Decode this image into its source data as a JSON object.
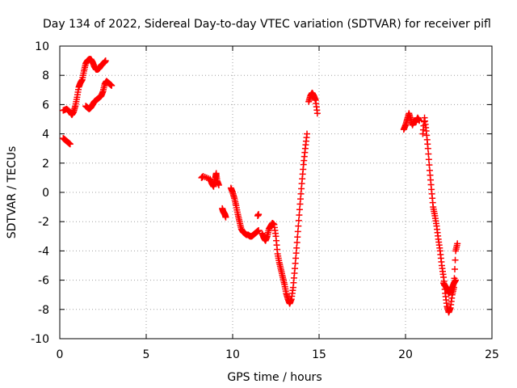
{
  "chart_data": {
    "type": "scatter",
    "title": "Day 134 of 2022, Sidereal Day-to-day VTEC variation (SDTVAR) for receiver pifl",
    "xlabel": "GPS time / hours",
    "ylabel": "SDTVAR / TECUs",
    "xlim": [
      0,
      25
    ],
    "ylim": [
      -10,
      10
    ],
    "xticks": [
      0,
      5,
      10,
      15,
      20,
      25
    ],
    "yticks": [
      -10,
      -8,
      -6,
      -4,
      -2,
      0,
      2,
      4,
      6,
      8,
      10
    ],
    "xtick_labels": [
      "0",
      "5",
      "10",
      "15",
      "20",
      "25"
    ],
    "ytick_labels": [
      "-10",
      "-8",
      "-6",
      "-4",
      "-2",
      "0",
      "2",
      "4",
      "6",
      "8",
      "10"
    ],
    "grid": true,
    "marker": "+",
    "color": "#ff0000",
    "series": [
      {
        "name": "SDTVAR",
        "segments": [
          [
            [
              0.2,
              3.7
            ],
            [
              0.3,
              3.6
            ],
            [
              0.4,
              3.5
            ],
            [
              0.5,
              3.4
            ],
            [
              0.6,
              3.3
            ]
          ],
          [
            [
              0.2,
              5.6
            ],
            [
              0.4,
              5.7
            ],
            [
              0.6,
              5.5
            ],
            [
              0.7,
              5.3
            ],
            [
              0.8,
              5.5
            ],
            [
              0.9,
              5.9
            ],
            [
              1.0,
              6.5
            ],
            [
              1.1,
              7.2
            ],
            [
              1.2,
              7.5
            ],
            [
              1.3,
              7.7
            ],
            [
              1.4,
              8.3
            ],
            [
              1.5,
              8.8
            ],
            [
              1.6,
              9.0
            ],
            [
              1.7,
              9.1
            ],
            [
              1.8,
              9.1
            ],
            [
              1.9,
              8.9
            ],
            [
              2.0,
              8.6
            ],
            [
              2.1,
              8.4
            ],
            [
              2.2,
              8.4
            ],
            [
              2.3,
              8.5
            ],
            [
              2.4,
              8.7
            ],
            [
              2.5,
              8.8
            ],
            [
              2.6,
              8.9
            ],
            [
              2.65,
              9.0
            ]
          ],
          [
            [
              1.5,
              5.9
            ],
            [
              1.6,
              5.8
            ],
            [
              1.7,
              5.7
            ],
            [
              1.8,
              5.8
            ],
            [
              1.9,
              6.0
            ],
            [
              2.0,
              6.2
            ],
            [
              2.1,
              6.3
            ],
            [
              2.2,
              6.4
            ],
            [
              2.3,
              6.5
            ],
            [
              2.4,
              6.6
            ],
            [
              2.5,
              6.9
            ],
            [
              2.6,
              7.4
            ],
            [
              2.7,
              7.6
            ],
            [
              2.8,
              7.5
            ],
            [
              2.9,
              7.4
            ],
            [
              3.0,
              7.3
            ]
          ],
          [
            [
              8.2,
              1.0
            ],
            [
              8.3,
              1.1
            ],
            [
              8.7,
              0.9
            ],
            [
              8.8,
              0.6
            ],
            [
              8.9,
              0.4
            ],
            [
              9.0,
              1.0
            ],
            [
              9.05,
              1.3
            ],
            [
              9.1,
              0.8
            ],
            [
              9.2,
              0.5
            ]
          ],
          [
            [
              9.4,
              -1.1
            ],
            [
              9.45,
              -1.3
            ],
            [
              9.5,
              -1.4
            ],
            [
              9.55,
              -1.5
            ],
            [
              9.6,
              -1.7
            ]
          ],
          [
            [
              9.9,
              0.3
            ],
            [
              10.0,
              0.0
            ],
            [
              10.1,
              -0.4
            ],
            [
              10.2,
              -0.9
            ],
            [
              10.3,
              -1.5
            ],
            [
              10.4,
              -2.0
            ],
            [
              10.5,
              -2.5
            ],
            [
              10.6,
              -2.7
            ],
            [
              10.7,
              -2.8
            ],
            [
              10.8,
              -2.9
            ],
            [
              10.9,
              -2.9
            ],
            [
              11.0,
              -3.0
            ],
            [
              11.1,
              -3.0
            ],
            [
              11.2,
              -2.9
            ],
            [
              11.3,
              -2.8
            ],
            [
              11.4,
              -2.7
            ],
            [
              11.5,
              -2.6
            ]
          ],
          [
            [
              11.45,
              -1.6
            ],
            [
              11.5,
              -1.5
            ]
          ],
          [
            [
              11.7,
              -2.8
            ],
            [
              11.8,
              -3.1
            ],
            [
              11.9,
              -3.3
            ],
            [
              12.0,
              -3.0
            ],
            [
              12.1,
              -2.5
            ],
            [
              12.2,
              -2.3
            ],
            [
              12.3,
              -2.1
            ],
            [
              12.4,
              -2.2
            ],
            [
              12.5,
              -3.0
            ],
            [
              12.6,
              -4.2
            ],
            [
              12.7,
              -4.8
            ],
            [
              12.8,
              -5.3
            ],
            [
              12.9,
              -5.8
            ],
            [
              13.0,
              -6.3
            ],
            [
              13.1,
              -6.9
            ],
            [
              13.2,
              -7.3
            ],
            [
              13.3,
              -7.6
            ],
            [
              13.4,
              -7.3
            ],
            [
              13.5,
              -6.5
            ],
            [
              13.6,
              -5.2
            ],
            [
              13.7,
              -3.8
            ],
            [
              13.8,
              -2.3
            ],
            [
              13.9,
              -0.8
            ],
            [
              14.0,
              0.6
            ],
            [
              14.1,
              1.9
            ],
            [
              14.2,
              3.0
            ],
            [
              14.3,
              4.0
            ]
          ],
          [
            [
              14.4,
              6.2
            ],
            [
              14.5,
              6.6
            ],
            [
              14.6,
              6.8
            ],
            [
              14.7,
              6.6
            ],
            [
              14.8,
              6.3
            ],
            [
              14.9,
              5.4
            ]
          ],
          [
            [
              19.9,
              4.3
            ],
            [
              20.0,
              4.6
            ],
            [
              20.1,
              5.0
            ],
            [
              20.2,
              5.4
            ],
            [
              20.3,
              5.0
            ],
            [
              20.4,
              4.6
            ],
            [
              20.5,
              4.9
            ],
            [
              20.6,
              4.8
            ],
            [
              20.7,
              5.1
            ],
            [
              20.8,
              4.9
            ]
          ],
          [
            [
              21.0,
              4.0
            ],
            [
              21.1,
              5.1
            ],
            [
              21.2,
              4.2
            ],
            [
              21.3,
              3.0
            ],
            [
              21.4,
              1.5
            ],
            [
              21.5,
              0.2
            ],
            [
              21.6,
              -1.0
            ],
            [
              21.7,
              -1.6
            ],
            [
              21.8,
              -2.3
            ],
            [
              21.9,
              -3.2
            ],
            [
              22.0,
              -4.0
            ],
            [
              22.1,
              -5.0
            ],
            [
              22.2,
              -5.8
            ],
            [
              22.3,
              -6.9
            ],
            [
              22.4,
              -7.8
            ],
            [
              22.5,
              -8.2
            ],
            [
              22.6,
              -7.9
            ],
            [
              22.7,
              -7.0
            ],
            [
              22.8,
              -6.5
            ],
            [
              22.9,
              -4.0
            ],
            [
              23.0,
              -3.5
            ]
          ],
          [
            [
              22.2,
              -6.2
            ],
            [
              22.3,
              -6.4
            ],
            [
              22.4,
              -6.6
            ],
            [
              22.5,
              -6.9
            ],
            [
              22.6,
              -6.8
            ],
            [
              22.7,
              -6.5
            ],
            [
              22.8,
              -6.2
            ],
            [
              22.9,
              -6.0
            ]
          ]
        ]
      }
    ]
  }
}
